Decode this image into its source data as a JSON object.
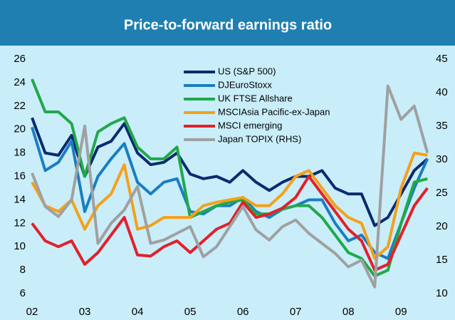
{
  "chart_data": {
    "type": "line",
    "title": "Price-to-forward earnings ratio",
    "x": [
      2002,
      2002.25,
      2002.5,
      2002.75,
      2003,
      2003.25,
      2003.5,
      2003.75,
      2004,
      2004.25,
      2004.5,
      2004.75,
      2005,
      2005.25,
      2005.5,
      2005.75,
      2006,
      2006.25,
      2006.5,
      2006.75,
      2007,
      2007.25,
      2007.5,
      2007.75,
      2008,
      2008.25,
      2008.5,
      2008.75,
      2009,
      2009.25,
      2009.5
    ],
    "xlim": [
      2002,
      2009.55
    ],
    "xticks": [
      {
        "value": 2002,
        "label": "02"
      },
      {
        "value": 2003,
        "label": "03"
      },
      {
        "value": 2004,
        "label": "04"
      },
      {
        "value": 2005,
        "label": "05"
      },
      {
        "value": 2006,
        "label": "06"
      },
      {
        "value": 2007,
        "label": "07"
      },
      {
        "value": 2008,
        "label": "08"
      },
      {
        "value": 2009,
        "label": "09"
      }
    ],
    "ylim": [
      6,
      26
    ],
    "yticks": [
      6,
      8,
      10,
      12,
      14,
      16,
      18,
      20,
      22,
      24,
      26
    ],
    "y2lim": [
      10,
      45
    ],
    "y2ticks": [
      10,
      15,
      20,
      25,
      30,
      35,
      40,
      45
    ],
    "series": [
      {
        "name": "US (S&P 500)",
        "color": "#0b2a6f",
        "values": [
          21,
          18,
          17.8,
          19.5,
          16,
          18.5,
          19,
          20.5,
          18,
          17,
          17.2,
          18,
          16.2,
          15.8,
          16,
          15.5,
          16.5,
          15.5,
          14.8,
          15.5,
          16,
          16,
          16.5,
          15,
          14.5,
          14.5,
          11.8,
          12.5,
          14.5,
          16.5,
          17.5
        ]
      },
      {
        "name": "DJEuroStoxx",
        "color": "#1a7ec2",
        "values": [
          20.2,
          16.5,
          17.2,
          19,
          13,
          16,
          17.5,
          18.8,
          15.5,
          14.5,
          15.5,
          15.8,
          13,
          12.8,
          13.5,
          13.5,
          14.2,
          13,
          12.5,
          13.2,
          13.5,
          14,
          14,
          12,
          10.5,
          11,
          9.5,
          9,
          12,
          15,
          17.5
        ]
      },
      {
        "name": "UK FTSE Allshare",
        "color": "#22a84a",
        "values": [
          24.3,
          21.5,
          21.5,
          20.5,
          16,
          19.8,
          20.5,
          21,
          18.5,
          17.5,
          17.5,
          18.5,
          12.5,
          13,
          13.5,
          13.8,
          14,
          12.8,
          12.8,
          13.2,
          13.5,
          13.5,
          12.5,
          11,
          9.5,
          9,
          7.5,
          8,
          12,
          15.5,
          15.8
        ]
      },
      {
        "name": "MSCIAsia Pacific-ex-Japan",
        "color": "#f5a01a",
        "values": [
          15.5,
          13.5,
          13,
          14,
          11.5,
          13.5,
          14.5,
          17,
          11.5,
          11.8,
          12.5,
          12.5,
          12.5,
          13.5,
          13.8,
          14,
          14.2,
          13.5,
          13.5,
          14.5,
          16,
          16.5,
          15,
          13.5,
          12.5,
          12,
          9,
          10,
          15,
          18,
          17.8
        ]
      },
      {
        "name": "MSCI emerging",
        "color": "#e3202a",
        "values": [
          12,
          10.5,
          10,
          10.5,
          8.5,
          9.5,
          11,
          12.5,
          9.3,
          9.2,
          10,
          10.5,
          9.5,
          10.5,
          11.5,
          12,
          13.8,
          12.5,
          12.8,
          13.3,
          14.2,
          16,
          14.5,
          13,
          11.5,
          10.5,
          8,
          8.5,
          11,
          13.5,
          15
        ]
      },
      {
        "name": "Japan TOPIX (RHS)",
        "color": "#a0a0a0",
        "axis": "y2",
        "values": [
          28,
          23,
          21.5,
          24,
          35,
          17.5,
          20.5,
          22.5,
          26,
          17.5,
          18,
          19,
          20,
          15.5,
          17,
          20,
          23,
          19.5,
          18,
          20,
          21,
          19,
          17.5,
          16,
          14,
          15,
          11,
          41,
          36,
          38,
          31
        ]
      }
    ]
  }
}
